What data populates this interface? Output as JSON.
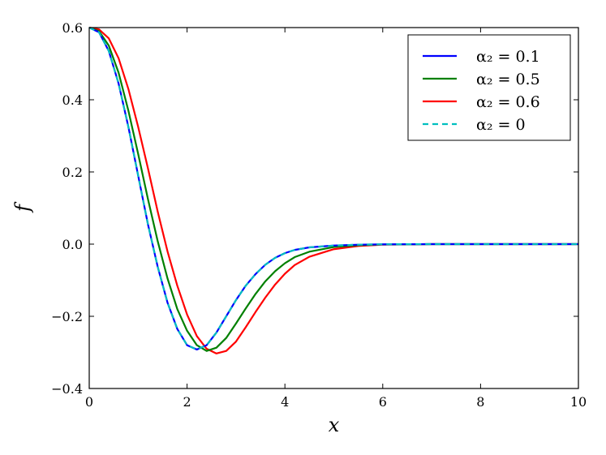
{
  "chart_data": {
    "type": "line",
    "xlabel": "x",
    "ylabel": "f",
    "xlim": [
      0,
      10
    ],
    "ylim": [
      -0.4,
      0.6
    ],
    "x_ticks": [
      0,
      2,
      4,
      6,
      8,
      10
    ],
    "x_tick_labels": [
      "0",
      "2",
      "4",
      "6",
      "8",
      "10"
    ],
    "y_ticks": [
      -0.4,
      -0.2,
      0.0,
      0.2,
      0.4,
      0.6
    ],
    "y_tick_labels": [
      "−0.4",
      "−0.2",
      "0.0",
      "0.2",
      "0.4",
      "0.6"
    ],
    "grid": false,
    "legend_position": "top-right",
    "series": [
      {
        "name": "α₂ = 0.1",
        "color": "#0000ff",
        "dash": "solid",
        "x": [
          0,
          0.2,
          0.4,
          0.6,
          0.8,
          1.0,
          1.2,
          1.4,
          1.6,
          1.8,
          2.0,
          2.2,
          2.4,
          2.6,
          2.8,
          3.0,
          3.2,
          3.4,
          3.6,
          3.8,
          4.0,
          4.2,
          4.5,
          5.0,
          5.5,
          6.0,
          7.0,
          8.0,
          10.0
        ],
        "y": [
          0.6,
          0.587,
          0.535,
          0.445,
          0.325,
          0.19,
          0.055,
          -0.063,
          -0.162,
          -0.235,
          -0.28,
          -0.292,
          -0.28,
          -0.245,
          -0.2,
          -0.155,
          -0.115,
          -0.083,
          -0.057,
          -0.038,
          -0.025,
          -0.016,
          -0.009,
          -0.004,
          -0.0015,
          -0.0005,
          0,
          0,
          0
        ]
      },
      {
        "name": "α₂ = 0.5",
        "color": "#008000",
        "dash": "solid",
        "x": [
          0,
          0.2,
          0.4,
          0.6,
          0.8,
          1.0,
          1.2,
          1.4,
          1.6,
          1.8,
          2.0,
          2.2,
          2.4,
          2.6,
          2.8,
          3.0,
          3.2,
          3.4,
          3.6,
          3.8,
          4.0,
          4.2,
          4.5,
          5.0,
          5.5,
          6.0,
          7.0,
          8.0,
          10.0
        ],
        "y": [
          0.6,
          0.59,
          0.55,
          0.475,
          0.37,
          0.25,
          0.125,
          0.008,
          -0.095,
          -0.18,
          -0.24,
          -0.28,
          -0.296,
          -0.287,
          -0.26,
          -0.22,
          -0.178,
          -0.138,
          -0.103,
          -0.075,
          -0.053,
          -0.036,
          -0.021,
          -0.008,
          -0.003,
          -0.001,
          0,
          0,
          0
        ]
      },
      {
        "name": "α₂ = 0.6",
        "color": "#ff0000",
        "dash": "solid",
        "x": [
          0,
          0.2,
          0.4,
          0.6,
          0.8,
          1.0,
          1.2,
          1.4,
          1.6,
          1.8,
          2.0,
          2.2,
          2.4,
          2.6,
          2.8,
          3.0,
          3.2,
          3.4,
          3.6,
          3.8,
          4.0,
          4.2,
          4.5,
          5.0,
          5.5,
          6.0,
          7.0,
          8.0,
          10.0
        ],
        "y": [
          0.6,
          0.595,
          0.57,
          0.515,
          0.43,
          0.325,
          0.21,
          0.09,
          -0.02,
          -0.115,
          -0.195,
          -0.255,
          -0.29,
          -0.303,
          -0.296,
          -0.27,
          -0.23,
          -0.188,
          -0.148,
          -0.112,
          -0.082,
          -0.058,
          -0.035,
          -0.014,
          -0.005,
          -0.0015,
          0,
          0,
          0
        ]
      },
      {
        "name": "α₂ = 0",
        "color": "#00bfbf",
        "dash": "dashed",
        "x": [
          0,
          0.2,
          0.4,
          0.6,
          0.8,
          1.0,
          1.2,
          1.4,
          1.6,
          1.8,
          2.0,
          2.2,
          2.4,
          2.6,
          2.8,
          3.0,
          3.2,
          3.4,
          3.6,
          3.8,
          4.0,
          4.2,
          4.5,
          5.0,
          5.5,
          6.0,
          7.0,
          8.0,
          10.0
        ],
        "y": [
          0.6,
          0.587,
          0.535,
          0.445,
          0.325,
          0.19,
          0.055,
          -0.063,
          -0.162,
          -0.235,
          -0.28,
          -0.292,
          -0.28,
          -0.245,
          -0.2,
          -0.155,
          -0.115,
          -0.083,
          -0.057,
          -0.038,
          -0.025,
          -0.016,
          -0.009,
          -0.004,
          -0.0015,
          -0.0005,
          0,
          0,
          0
        ]
      }
    ]
  }
}
